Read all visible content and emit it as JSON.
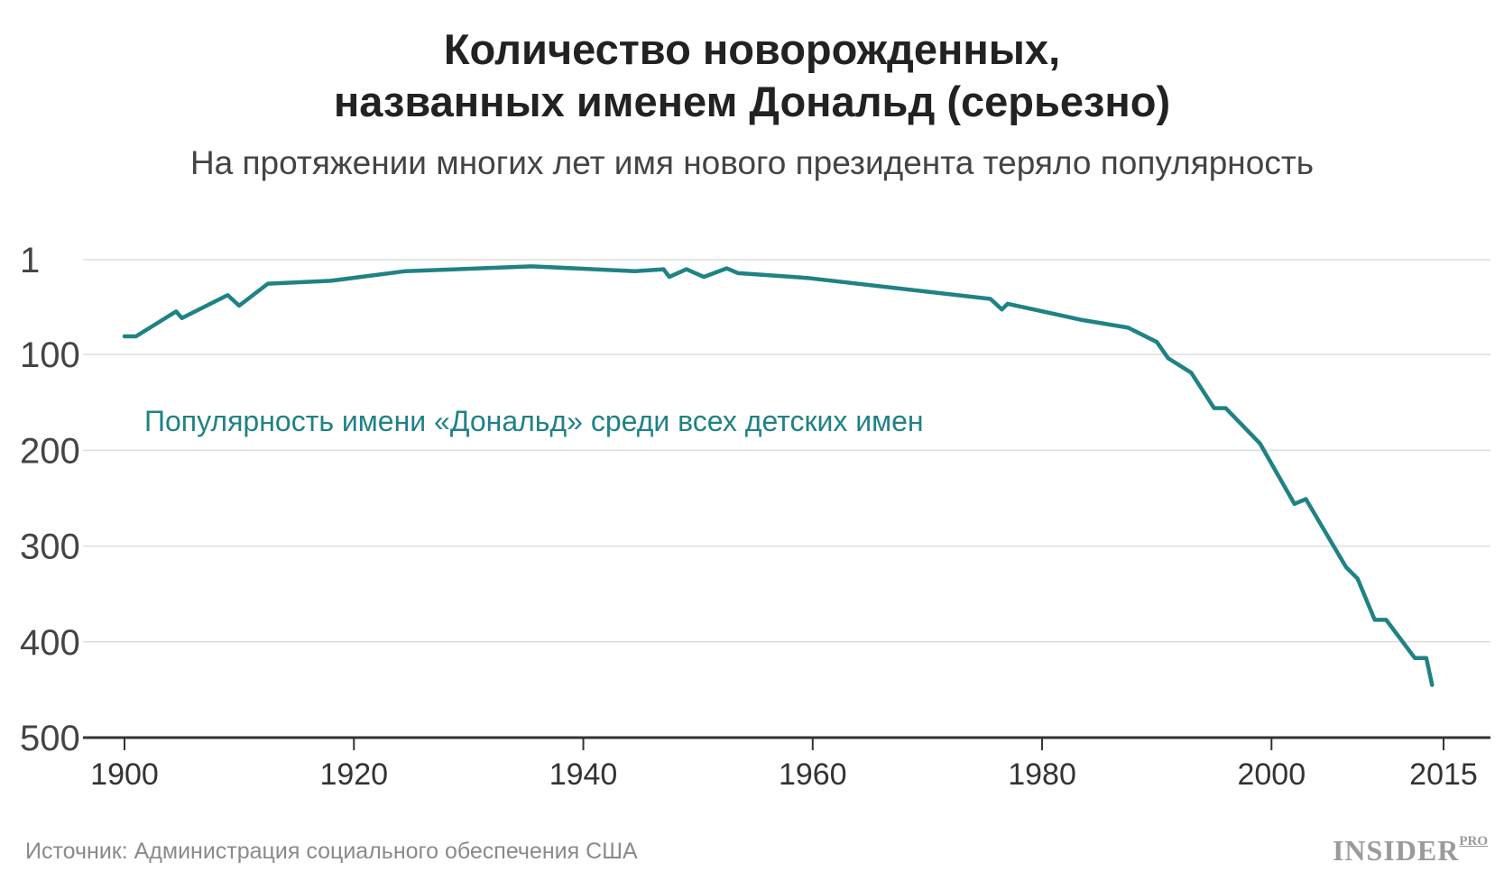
{
  "header": {
    "title_line1": "Количество новорожденных,",
    "title_line2": "названных именем Дональд (серьезно)",
    "subtitle": "На протяжении многих лет имя нового президента теряло популярность"
  },
  "footer": {
    "source": "Источник: Администрация социального обеспечения США",
    "logo_main": "INSIDER",
    "logo_sup": "PRO"
  },
  "colors": {
    "line": "#1f8285",
    "grid": "#dddddd",
    "axis": "#333333",
    "tick_text": "#444444"
  },
  "chart_data": {
    "type": "line",
    "title": "Количество новорожденных, названных именем Дональд (серьезно)",
    "subtitle": "На протяжении многих лет имя нового президента теряло популярность",
    "xlabel": "",
    "ylabel": "",
    "xlim": [
      1900,
      2015
    ],
    "ylim": [
      1,
      500
    ],
    "y_inverted": true,
    "grid": true,
    "x_ticks": [
      1900,
      1920,
      1940,
      1960,
      1980,
      2000,
      2015
    ],
    "y_ticks": [
      1,
      100,
      200,
      300,
      400,
      500
    ],
    "series": [
      {
        "name": "Популярность имени «Дональд» среди всех детских имен",
        "x": [
          1900,
          1901,
          1904.5,
          1905,
          1909,
          1910,
          1912.5,
          1918,
          1924.5,
          1935.5,
          1944.5,
          1947,
          1947.5,
          1949,
          1950.5,
          1952.5,
          1953.5,
          1959.5,
          1975.5,
          1976.5,
          1977,
          1983.5,
          1987.5,
          1990,
          1991,
          1993,
          1995,
          1996,
          1999,
          2002,
          2003,
          2006.5,
          2007.5,
          2009,
          2010,
          2012.5,
          2013.5,
          2014
        ],
        "y": [
          81,
          81,
          55,
          62,
          38,
          49,
          26,
          23,
          13,
          8,
          13,
          11,
          19,
          11,
          19,
          10,
          15,
          20,
          42,
          53,
          47,
          64,
          72,
          87,
          104,
          119,
          156,
          156,
          193,
          256,
          251,
          322,
          334,
          377,
          377,
          417,
          417,
          445
        ]
      }
    ]
  }
}
